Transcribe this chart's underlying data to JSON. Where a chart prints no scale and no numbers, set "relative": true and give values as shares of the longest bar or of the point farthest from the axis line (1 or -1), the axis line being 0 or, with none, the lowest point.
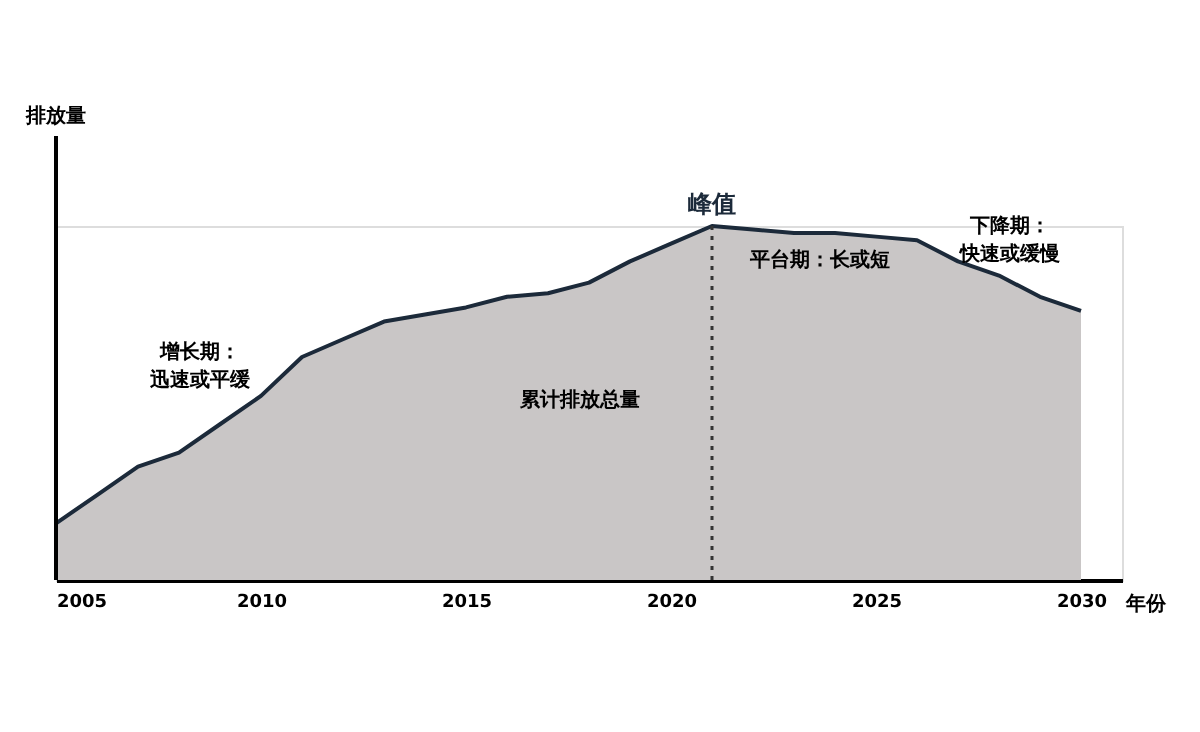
{
  "chart_data": {
    "type": "area",
    "relative": true,
    "xlabel": "年份",
    "ylabel": "排放量",
    "x": [
      2005,
      2006,
      2007,
      2008,
      2009,
      2010,
      2011,
      2012,
      2013,
      2014,
      2015,
      2016,
      2017,
      2018,
      2019,
      2020,
      2021,
      2022,
      2023,
      2024,
      2025,
      2026,
      2027,
      2028,
      2029,
      2030
    ],
    "series": [
      {
        "color": "#c9c6c6",
        "values": [
          0.16,
          0.24,
          0.32,
          0.36,
          0.44,
          0.52,
          0.63,
          0.68,
          0.73,
          0.75,
          0.77,
          0.8,
          0.81,
          0.84,
          0.9,
          0.95,
          1,
          0.99,
          0.98,
          0.98,
          0.97,
          0.96,
          0.9,
          0.86,
          0.8,
          0.76
        ]
      }
    ],
    "xlim": [
      2005,
      2031
    ],
    "xticks": [
      2005,
      2010,
      2015,
      2020,
      2025,
      2030
    ],
    "ref_lines": [
      {
        "axis": "x",
        "value": 2021,
        "line_style": "dotted",
        "color": "#333333"
      }
    ],
    "annotations": [
      {
        "text": "峰值",
        "x": 2021,
        "y": 1
      },
      "增长期：迅速或平缓",
      "平台期：长或短",
      "下降期：快速或缓慢",
      "累计排放总量"
    ]
  }
}
